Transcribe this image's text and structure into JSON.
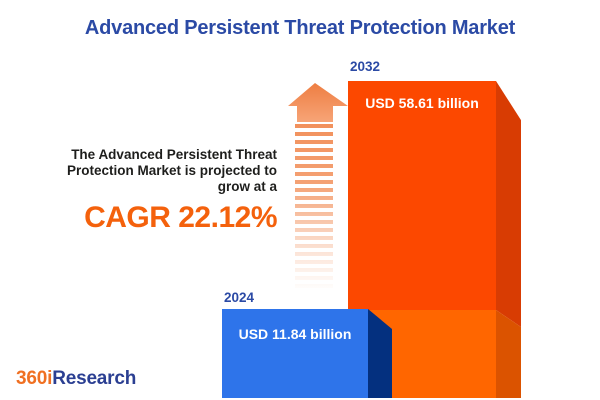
{
  "title": "Advanced Persistent Threat Protection Market",
  "annotation": {
    "text": "The Advanced Persistent Threat\nProtection Market is projected to\ngrow at a",
    "cagr": "CAGR 22.12%"
  },
  "bars": {
    "start": {
      "year": "2024",
      "value_label": "USD 11.84 billion"
    },
    "end": {
      "year": "2032",
      "value_label": "USD 58.61 billion"
    }
  },
  "logo": {
    "prefix": "360i",
    "suffix": "Research"
  },
  "icons": {
    "arrow": "growth-arrow-icon"
  },
  "colors": {
    "title-blue": "#2B4AA5",
    "text-dark": "#1E1E1C",
    "accent-orange": "#F4610C",
    "orange-front": "#FC4800",
    "orange-side": "#D83C03",
    "orange2-front": "#FF6600",
    "orange2-side": "#DB5300",
    "blue-front": "#2E74EA",
    "blue-side": "#04307F",
    "arrow-stripe": "#F2915C",
    "logo-orange": "#F07022",
    "logo-blue": "#2B3F92"
  },
  "chart_data": {
    "type": "bar",
    "categories": [
      "2024",
      "2032"
    ],
    "values": [
      11.84,
      58.61
    ],
    "unit": "USD billion",
    "value_labels": [
      "USD 11.84 billion",
      "USD 58.61 billion"
    ],
    "series_colors": [
      "#2E74EA",
      "#FC4800"
    ],
    "title": "Advanced Persistent Threat Protection Market",
    "annotation": "The Advanced Persistent Threat Protection Market is projected to grow at a CAGR 22.12%",
    "cagr_percent": 22.12,
    "legend": "off",
    "grid": "off",
    "axes": "none"
  }
}
